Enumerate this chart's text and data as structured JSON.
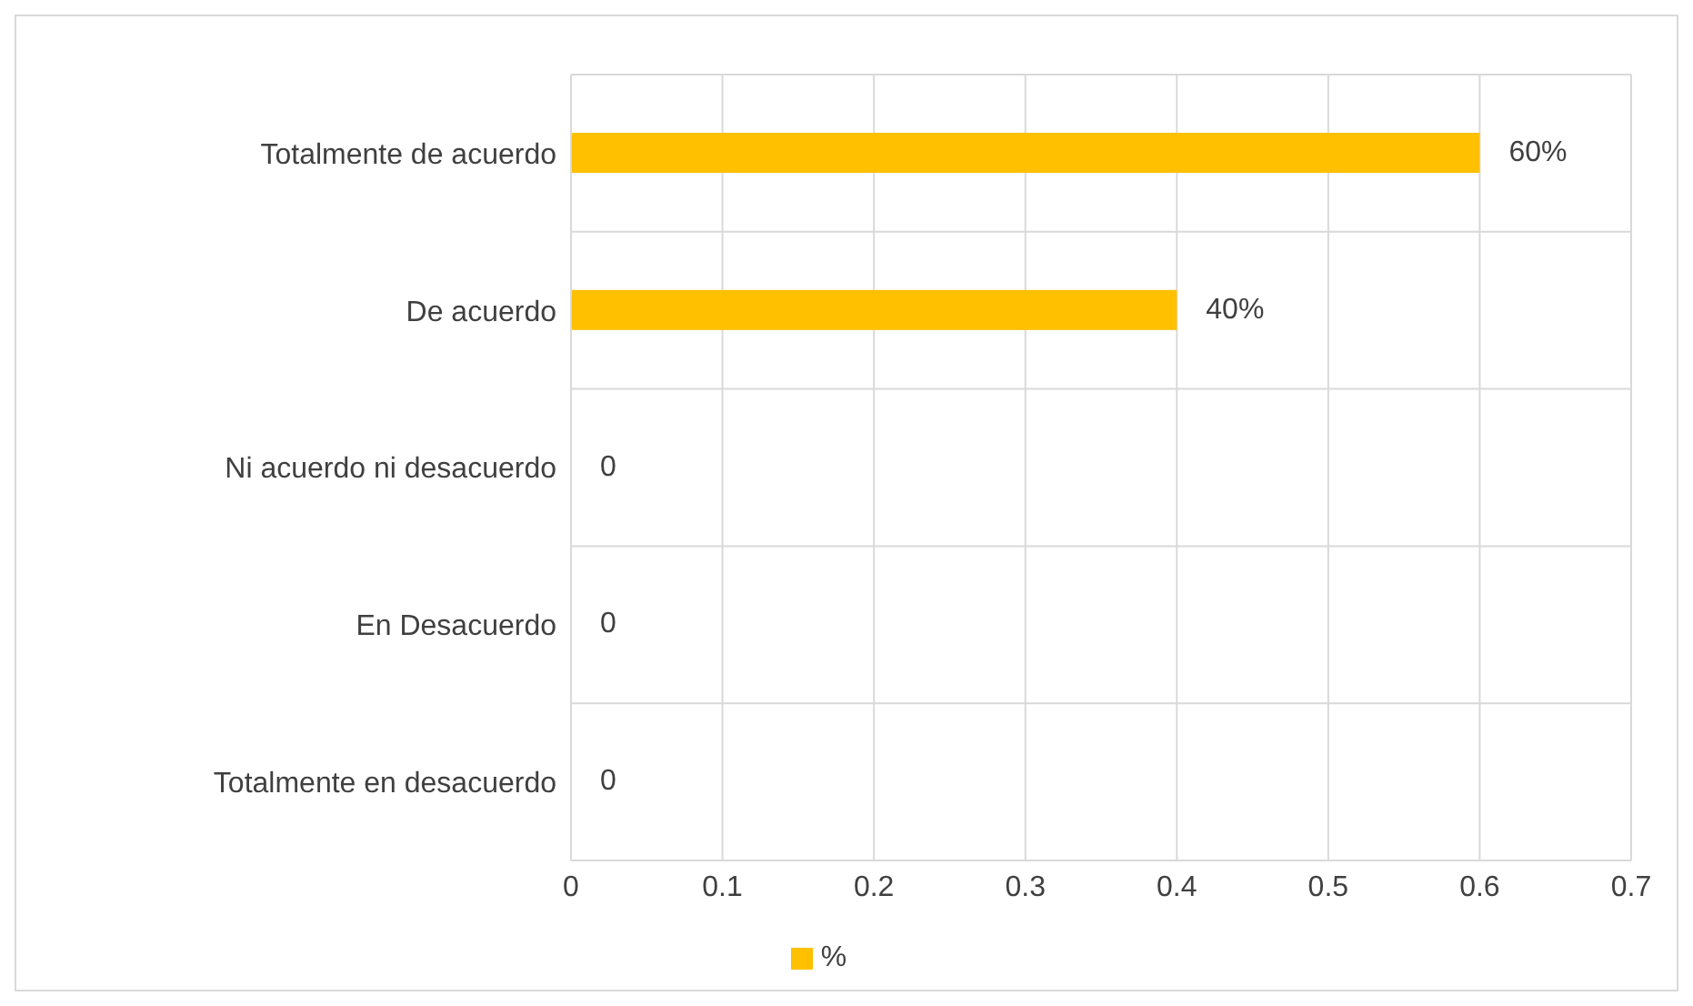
{
  "chart_data": {
    "type": "bar",
    "orientation": "horizontal",
    "categories": [
      "Totalmente de acuerdo",
      "De acuerdo",
      "Ni acuerdo ni desacuerdo",
      "En Desacuerdo",
      "Totalmente en desacuerdo"
    ],
    "series": [
      {
        "name": "%",
        "color": "#ffc000",
        "values": [
          0.6,
          0.4,
          0,
          0,
          0
        ],
        "value_labels": [
          "60%",
          "40%",
          "0",
          "0",
          "0"
        ]
      }
    ],
    "xlim": [
      0,
      0.7
    ],
    "xticks": [
      0,
      0.1,
      0.2,
      0.3,
      0.4,
      0.5,
      0.6,
      0.7
    ],
    "grid": true,
    "legend": "bottom"
  }
}
